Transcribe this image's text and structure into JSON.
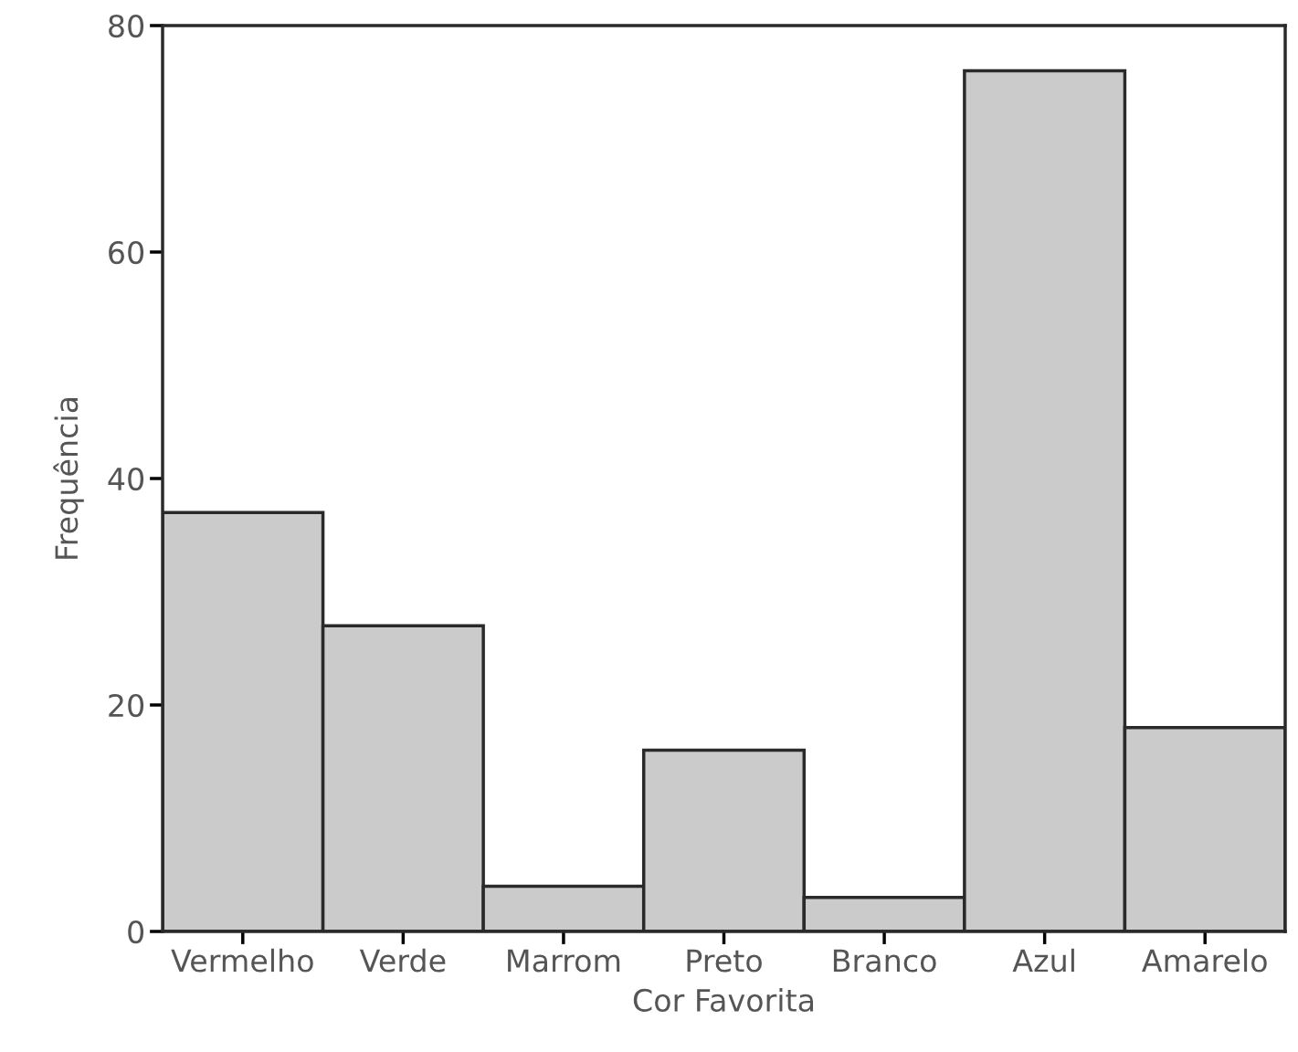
{
  "chart_data": {
    "type": "bar",
    "xlabel": "Cor Favorita",
    "ylabel": "Frequência",
    "categories": [
      "Vermelho",
      "Verde",
      "Marrom",
      "Preto",
      "Branco",
      "Azul",
      "Amarelo"
    ],
    "values": [
      37,
      27,
      4,
      16,
      3,
      76,
      18
    ],
    "color": "#cbcbcb",
    "ylim": [
      0,
      80
    ],
    "yticks": [
      0,
      20,
      40,
      60,
      80
    ],
    "grid": false,
    "legend": false
  }
}
